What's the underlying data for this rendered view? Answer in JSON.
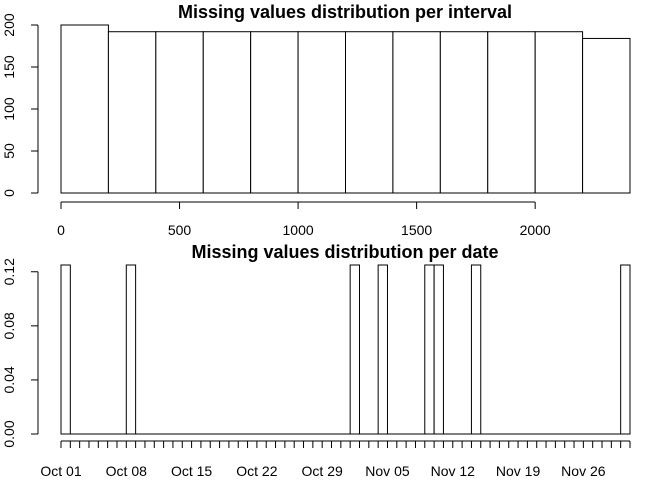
{
  "chart_data": [
    {
      "type": "bar",
      "title": "Missing values distribution per interval",
      "xlabel": "",
      "ylabel": "",
      "bin_edges": [
        0,
        200,
        400,
        600,
        800,
        1000,
        1200,
        1400,
        1600,
        1800,
        2000,
        2200,
        2400
      ],
      "values": [
        200,
        192,
        192,
        192,
        192,
        192,
        192,
        192,
        192,
        192,
        192,
        184
      ],
      "xlim": [
        0,
        2400
      ],
      "ylim": [
        0,
        200
      ],
      "x_ticks": [
        0,
        500,
        1000,
        1500,
        2000
      ],
      "x_tick_labels": [
        "0",
        "500",
        "1000",
        "1500",
        "2000"
      ],
      "y_ticks": [
        0,
        50,
        100,
        150,
        200
      ],
      "y_tick_labels": [
        "0",
        "50",
        "100",
        "150",
        "200"
      ],
      "grid": false,
      "colors": {
        "bar_fill": "#ffffff",
        "bar_stroke": "#000000"
      }
    },
    {
      "type": "bar",
      "title": "Missing values distribution per date",
      "xlabel": "",
      "ylabel": "",
      "x_start": "2012-10-01",
      "x_end": "2012-11-30",
      "bars": [
        {
          "start": "2012-10-01",
          "end": "2012-10-02",
          "value": 0.125
        },
        {
          "start": "2012-10-08",
          "end": "2012-10-09",
          "value": 0.125
        },
        {
          "start": "2012-11-01",
          "end": "2012-11-02",
          "value": 0.125
        },
        {
          "start": "2012-11-04",
          "end": "2012-11-05",
          "value": 0.125
        },
        {
          "start": "2012-11-09",
          "end": "2012-11-10",
          "value": 0.125
        },
        {
          "start": "2012-11-10",
          "end": "2012-11-11",
          "value": 0.125
        },
        {
          "start": "2012-11-14",
          "end": "2012-11-15",
          "value": 0.125
        },
        {
          "start": "2012-11-30",
          "end": "2012-12-01",
          "value": 0.125
        }
      ],
      "ylim": [
        0,
        0.125
      ],
      "y_ticks": [
        0,
        0.04,
        0.08,
        0.12
      ],
      "y_tick_labels": [
        "0.00",
        "0.04",
        "0.08",
        "0.12"
      ],
      "x_labeled_ticks": [
        "2012-10-01",
        "2012-10-08",
        "2012-10-15",
        "2012-10-22",
        "2012-10-29",
        "2012-11-05",
        "2012-11-12",
        "2012-11-19",
        "2012-11-26"
      ],
      "x_tick_labels": [
        "Oct 01",
        "Oct 08",
        "Oct 15",
        "Oct 22",
        "Oct 29",
        "Nov 05",
        "Nov 12",
        "Nov 19",
        "Nov 26"
      ],
      "grid": false,
      "colors": {
        "bar_fill": "#ffffff",
        "bar_stroke": "#000000"
      }
    }
  ]
}
